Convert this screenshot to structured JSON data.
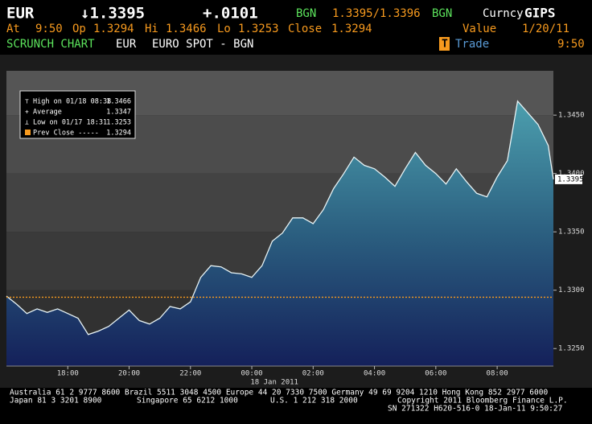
{
  "header": {
    "line1": {
      "ticker": "EUR",
      "price": "↓1.3395",
      "change": "+.0101",
      "source1": "BGN",
      "bid_ask": "1.3395/1.3396",
      "source2": "BGN",
      "yellow_key": "Curncy",
      "function": "GIPS"
    },
    "line2": {
      "at_label": "At",
      "at": "9:50",
      "op_label": "Op",
      "op": "1.3294",
      "hi_label": "Hi",
      "hi": "1.3466",
      "lo_label": "Lo",
      "lo": "1.3253",
      "close_label": "Close",
      "close": "1.3294",
      "value_label": "Value",
      "value": "1/20/11"
    },
    "line3": {
      "chart_name": "SCRUNCH CHART",
      "ticker": "EUR",
      "description": "EURO SPOT - BGN",
      "trade_icon": "T",
      "trade": "Trade",
      "time": "9:50"
    }
  },
  "chart_data": {
    "type": "area",
    "x": [
      "16:00",
      "16:20",
      "16:40",
      "17:00",
      "17:20",
      "17:40",
      "18:00",
      "18:20",
      "18:40",
      "19:00",
      "19:20",
      "19:40",
      "20:00",
      "20:20",
      "20:40",
      "21:00",
      "21:20",
      "21:40",
      "22:00",
      "22:20",
      "22:40",
      "23:00",
      "23:20",
      "23:40",
      "00:00",
      "00:20",
      "00:40",
      "01:00",
      "01:20",
      "01:40",
      "02:00",
      "02:20",
      "02:40",
      "03:00",
      "03:20",
      "03:40",
      "04:00",
      "04:20",
      "04:40",
      "05:00",
      "05:20",
      "05:40",
      "06:00",
      "06:20",
      "06:40",
      "07:00",
      "07:20",
      "07:40",
      "08:00",
      "08:20",
      "08:40",
      "09:00",
      "09:20",
      "09:40",
      "09:50"
    ],
    "values": [
      1.3295,
      1.3288,
      1.328,
      1.3284,
      1.3281,
      1.3284,
      1.328,
      1.3276,
      1.3262,
      1.3265,
      1.3269,
      1.3276,
      1.3283,
      1.3274,
      1.3271,
      1.3276,
      1.3286,
      1.3284,
      1.329,
      1.3311,
      1.3321,
      1.332,
      1.3315,
      1.3314,
      1.3311,
      1.3321,
      1.3342,
      1.3349,
      1.3362,
      1.3362,
      1.3357,
      1.3369,
      1.3387,
      1.34,
      1.3414,
      1.3407,
      1.3404,
      1.3397,
      1.3389,
      1.3404,
      1.3418,
      1.3407,
      1.34,
      1.3391,
      1.3404,
      1.3393,
      1.3383,
      1.338,
      1.3397,
      1.3411,
      1.3462,
      1.3452,
      1.3442,
      1.3424,
      1.3395
    ],
    "color": "#3f8c9c",
    "xlim": [
      "16:00",
      "09:50"
    ],
    "xticks": [
      "18:00",
      "20:00",
      "22:00",
      "00:00",
      "02:00",
      "04:00",
      "06:00",
      "08:00"
    ],
    "date_label": "18 Jan 2011",
    "ylim": [
      1.3235,
      1.3488
    ],
    "yticks": [
      {
        "value": 1.325,
        "label": "1.3250"
      },
      {
        "value": 1.33,
        "label": "1.3300"
      },
      {
        "value": 1.335,
        "label": "1.3350"
      },
      {
        "value": 1.34,
        "label": "1.3400"
      },
      {
        "value": 1.345,
        "label": "1.3450"
      }
    ],
    "last_value": 1.3395,
    "legend": [
      {
        "label": "High on 01/18 08:38",
        "value": 1.3466
      },
      {
        "label": "Average",
        "value": 1.3347
      },
      {
        "label": "Low on 01/17 18:31",
        "value": 1.3253
      },
      {
        "label": "Prev Close -----",
        "value": 1.3294,
        "color": "#f79a1e"
      }
    ]
  },
  "footer": {
    "line1": "Australia 61 2 9777 8600 Brazil 5511 3048 4500 Europe 44 20 7330 7500 Germany 49 69 9204 1210 Hong Kong 852 2977 6000",
    "japan": "Japan 81 3 3201 8900",
    "singapore": "Singapore 65 6212 1000",
    "us": "U.S. 1 212 318 2000",
    "copyright": "Copyright 2011 Bloomberg Finance L.P.",
    "serial": "SN 271322 H620-516-0 18-Jan-11  9:50:27"
  }
}
